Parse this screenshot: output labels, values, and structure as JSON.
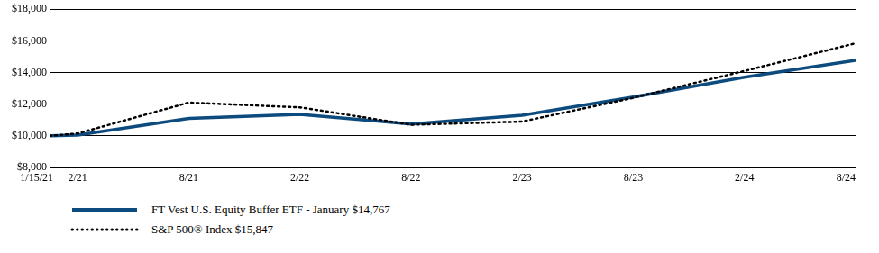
{
  "chart_data": {
    "type": "line",
    "x": [
      "1/15/21",
      "2/21",
      "8/21",
      "2/22",
      "8/22",
      "2/23",
      "8/23",
      "2/24",
      "8/24"
    ],
    "xlim": [
      "1/15/21",
      "8/24"
    ],
    "series": [
      {
        "name": "FT Vest U.S. Equity Buffer ETF - January $14,767",
        "color": "#0d4b7e",
        "line_style": "solid",
        "values": [
          10000,
          10050,
          11100,
          11350,
          10750,
          11300,
          12450,
          13700,
          14767
        ]
      },
      {
        "name": "S&P 500® Index $15,847",
        "color": "#000000",
        "line_style": "dotted",
        "values": [
          10000,
          10150,
          12100,
          11800,
          10700,
          10900,
          12400,
          14100,
          15847
        ]
      }
    ],
    "ylim": [
      8000,
      18000
    ],
    "yticks": [
      {
        "value": 8000,
        "label": "$8,000"
      },
      {
        "value": 10000,
        "label": "$10,000"
      },
      {
        "value": 12000,
        "label": "$12,000"
      },
      {
        "value": 14000,
        "label": "$14,000"
      },
      {
        "value": 16000,
        "label": "$16,000"
      },
      {
        "value": 18000,
        "label": "$18,000"
      }
    ],
    "grid": true,
    "legend": "bottom"
  }
}
